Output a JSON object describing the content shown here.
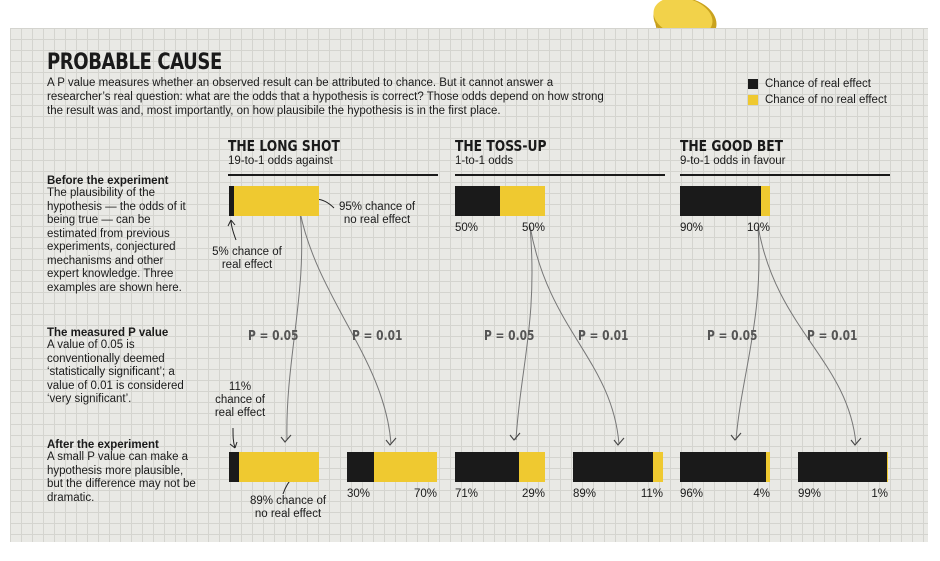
{
  "title": "PROBABLE CAUSE",
  "intro": "A P value measures whether an observed result can be attributed to chance. But it cannot answer a researcher’s real question: what are the odds that a hypothesis is correct? Those odds depend on how strong the result was and, most importantly, on how plausibile the hypothesis is in the first place.",
  "legend": [
    {
      "label": "Chance of real effect",
      "color": "#1a1a1a"
    },
    {
      "label": "Chance of no real effect",
      "color": "#efc930"
    }
  ],
  "colors": {
    "real": "#1a1a1a",
    "none": "#efc930"
  },
  "sidebar": {
    "before": {
      "heading": "Before the experiment",
      "text": "The plausibility of the hypothesis — the odds of it being true — can be estimated from previous experiments, conjectured mechanisms and other expert knowledge. Three examples are shown here."
    },
    "measured": {
      "heading": "The measured P value",
      "text": "A value of 0.05 is conventionally deemed ‘statistically significant’; a value of 0.01 is considered ‘very significant’."
    },
    "after": {
      "heading": "After the experiment",
      "text": "A small P value can make a hypothesis more plausible, but the difference may not be dramatic."
    }
  },
  "p_labels": [
    "P = 0.05",
    "P = 0.01"
  ],
  "scenarios": [
    {
      "title": "THE LONG SHOT",
      "subtitle": "19-to-1 odds against",
      "before": {
        "real": 5,
        "none": 95,
        "real_label": "",
        "none_label": ""
      },
      "after": [
        {
          "real": 11,
          "none": 89,
          "real_label": "",
          "none_label": ""
        },
        {
          "real": 30,
          "none": 70,
          "real_label": "30%",
          "none_label": "70%"
        }
      ]
    },
    {
      "title": "THE TOSS-UP",
      "subtitle": "1-to-1 odds",
      "before": {
        "real": 50,
        "none": 50,
        "real_label": "50%",
        "none_label": "50%"
      },
      "after": [
        {
          "real": 71,
          "none": 29,
          "real_label": "71%",
          "none_label": "29%"
        },
        {
          "real": 89,
          "none": 11,
          "real_label": "89%",
          "none_label": "11%"
        }
      ]
    },
    {
      "title": "THE GOOD BET",
      "subtitle": "9-to-1 odds in favour",
      "before": {
        "real": 90,
        "none": 10,
        "real_label": "90%",
        "none_label": "10%"
      },
      "after": [
        {
          "real": 96,
          "none": 4,
          "real_label": "96%",
          "none_label": "4%"
        },
        {
          "real": 99,
          "none": 1,
          "real_label": "99%",
          "none_label": "1%"
        }
      ]
    }
  ],
  "annotations": {
    "before_none": "95% chance of no real effect",
    "before_real": "5% chance of real effect",
    "after_real": "11% chance of real effect",
    "after_none": "89% chance of no real effect"
  }
}
